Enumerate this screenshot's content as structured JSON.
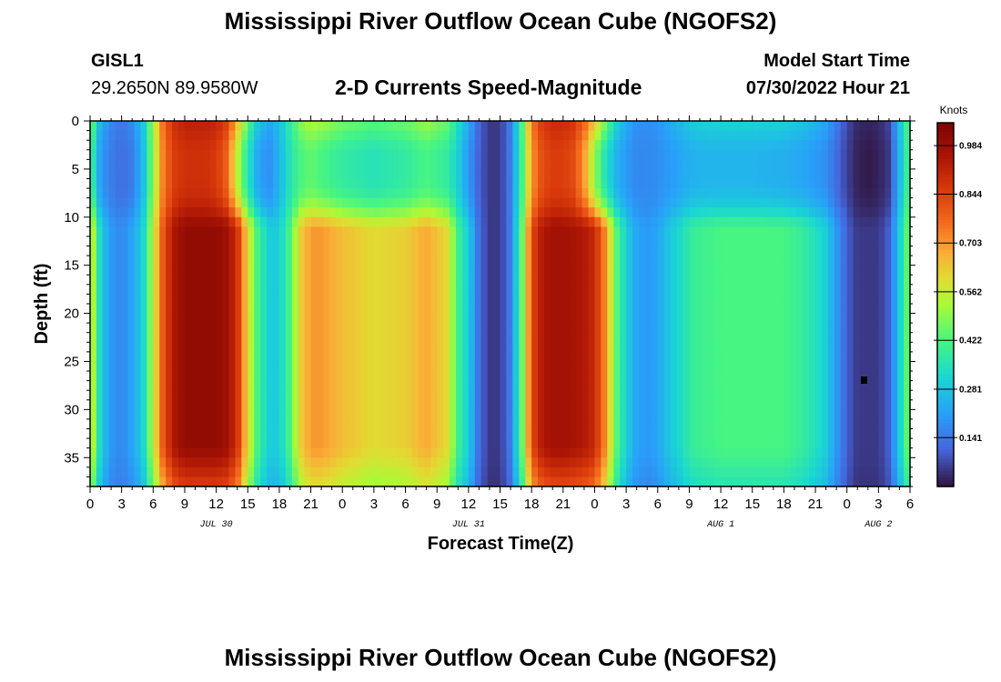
{
  "header": {
    "title": "Mississippi River Outflow Ocean Cube (NGOFS2)",
    "station_id": "GISL1",
    "station_coords": "29.2650N  89.9580W",
    "variable": "2-D Currents Speed-Magnitude",
    "model_start_label": "Model Start Time",
    "model_start_value": "07/30/2022 Hour 21"
  },
  "footer": {
    "title": "Mississippi River Outflow Ocean Cube (NGOFS2)"
  },
  "chart_data": {
    "type": "heatmap",
    "title": "2-D Currents Speed-Magnitude",
    "xlabel": "Forecast Time(Z)",
    "ylabel": "Depth (ft)",
    "x_range_hours": [
      0,
      78
    ],
    "y_range_ft": [
      0,
      38
    ],
    "x_tick_labels": [
      "0",
      "3",
      "6",
      "9",
      "12",
      "15",
      "18",
      "21",
      "0",
      "3",
      "6",
      "9",
      "12",
      "15",
      "18",
      "21",
      "0",
      "3",
      "6",
      "9",
      "12",
      "15",
      "18",
      "21",
      "0",
      "3",
      "6"
    ],
    "y_ticks": [
      0,
      5,
      10,
      15,
      20,
      25,
      30,
      35
    ],
    "y_tick_labels": [
      "0",
      "5",
      "10",
      "15",
      "20",
      "25",
      "30",
      "35"
    ],
    "date_labels": [
      {
        "text": "JUL 30",
        "hour": 12
      },
      {
        "text": "JUL 31",
        "hour": 36
      },
      {
        "text": "AUG 1",
        "hour": 60
      },
      {
        "text": "AUG 2",
        "hour": 75
      }
    ],
    "colorbar": {
      "unit": "Knots",
      "min": 0.0,
      "max": 1.05,
      "tick_values": [
        0.984,
        0.844,
        0.703,
        0.562,
        0.422,
        0.281,
        0.141
      ],
      "tick_labels": [
        "0.984",
        "0.844",
        "0.703",
        "0.562",
        "0.422",
        "0.281",
        "0.141"
      ]
    },
    "speed_profile": {
      "description": "approximate speed (knots) vs forecast hour for deep layer (>11 ft) and near-surface layer (<=11 ft)",
      "hours": [
        0,
        0.5,
        1,
        2,
        3,
        4,
        5,
        6,
        7,
        8,
        9,
        10,
        11,
        12,
        13,
        14,
        15,
        16,
        17,
        18,
        19,
        20,
        21,
        22,
        24,
        27,
        30,
        32,
        34,
        35,
        36,
        37,
        38,
        39,
        40,
        41,
        42,
        43,
        44,
        45,
        46,
        47,
        48,
        49,
        50,
        51,
        52,
        53,
        54,
        55,
        56,
        57,
        58,
        60,
        63,
        66,
        68,
        70,
        71,
        72,
        73,
        74,
        75,
        76,
        77,
        78
      ],
      "deep": [
        0.55,
        0.5,
        0.3,
        0.2,
        0.17,
        0.22,
        0.3,
        0.55,
        0.82,
        0.95,
        1.0,
        1.0,
        1.0,
        1.0,
        0.98,
        0.88,
        0.6,
        0.4,
        0.3,
        0.3,
        0.42,
        0.62,
        0.7,
        0.7,
        0.65,
        0.6,
        0.62,
        0.68,
        0.6,
        0.4,
        0.3,
        0.12,
        0.05,
        0.05,
        0.15,
        0.42,
        0.82,
        0.94,
        0.97,
        0.97,
        0.96,
        0.94,
        0.9,
        0.72,
        0.45,
        0.3,
        0.22,
        0.2,
        0.22,
        0.28,
        0.32,
        0.38,
        0.4,
        0.42,
        0.42,
        0.42,
        0.38,
        0.3,
        0.2,
        0.1,
        0.05,
        0.05,
        0.05,
        0.1,
        0.3,
        0.5
      ],
      "surface": [
        0.45,
        0.3,
        0.2,
        0.15,
        0.12,
        0.15,
        0.25,
        0.5,
        0.75,
        0.85,
        0.88,
        0.88,
        0.88,
        0.86,
        0.78,
        0.55,
        0.35,
        0.22,
        0.18,
        0.25,
        0.35,
        0.42,
        0.45,
        0.42,
        0.38,
        0.35,
        0.38,
        0.42,
        0.38,
        0.3,
        0.2,
        0.1,
        0.05,
        0.05,
        0.15,
        0.38,
        0.7,
        0.82,
        0.85,
        0.85,
        0.82,
        0.7,
        0.5,
        0.35,
        0.25,
        0.2,
        0.17,
        0.17,
        0.18,
        0.2,
        0.22,
        0.24,
        0.25,
        0.25,
        0.25,
        0.24,
        0.22,
        0.18,
        0.12,
        0.06,
        0.02,
        0.01,
        0.02,
        0.05,
        0.25,
        0.45
      ]
    }
  }
}
